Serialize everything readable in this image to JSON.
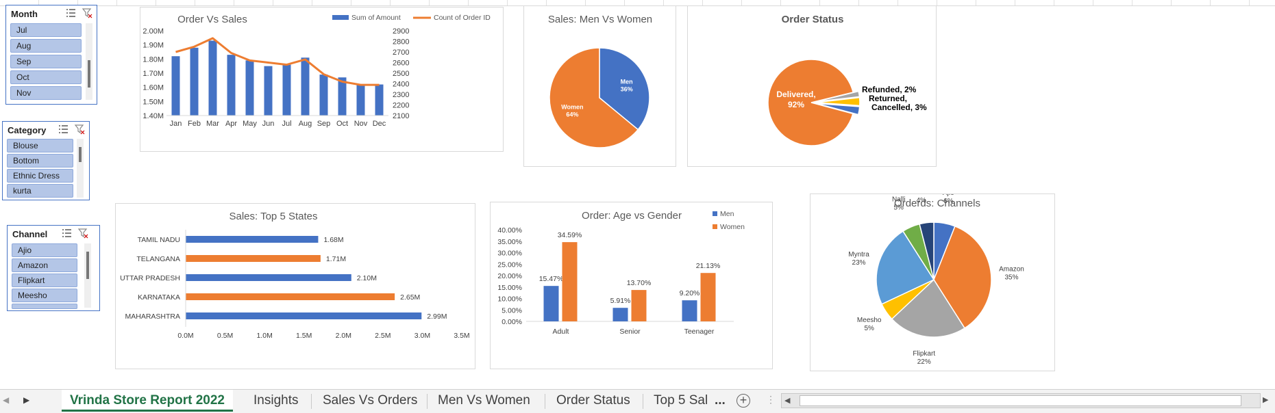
{
  "slicers": {
    "month": {
      "title": "Month",
      "items": [
        "Jul",
        "Aug",
        "Sep",
        "Oct",
        "Nov"
      ]
    },
    "category": {
      "title": "Category",
      "items": [
        "Blouse",
        "Bottom",
        "Ethnic Dress",
        "kurta"
      ]
    },
    "channel": {
      "title": "Channel",
      "items": [
        "Ajio",
        "Amazon",
        "Flipkart",
        "Meesho"
      ]
    }
  },
  "tabs": {
    "items": [
      "Vrinda Store Report 2022",
      "Insights",
      "Sales Vs Orders",
      "Men Vs Women",
      "Order Status",
      "Top 5 Sal"
    ],
    "more": "...",
    "add_icon": "plus-circle-icon"
  },
  "colors": {
    "blue": "#4472c4",
    "orange": "#ed7d31",
    "gray": "#a5a5a5",
    "yellow": "#ffc000",
    "lightblue": "#5b9bd5",
    "green": "#70ad47",
    "navy": "#264478",
    "tab_green": "#217346"
  },
  "chart_data": [
    {
      "id": "order_vs_sales",
      "type": "bar+line",
      "title": "Order Vs Sales",
      "categories": [
        "Jan",
        "Feb",
        "Mar",
        "Apr",
        "May",
        "Jun",
        "Jul",
        "Aug",
        "Sep",
        "Oct",
        "Nov",
        "Dec"
      ],
      "series": [
        {
          "name": "Sum of Amount",
          "type": "bar",
          "axis": "left",
          "values": [
            1.82,
            1.88,
            1.93,
            1.83,
            1.79,
            1.75,
            1.76,
            1.81,
            1.69,
            1.67,
            1.62,
            1.62
          ]
        },
        {
          "name": "Count of Order ID",
          "type": "line",
          "axis": "right",
          "values": [
            2700,
            2750,
            2830,
            2690,
            2620,
            2600,
            2580,
            2630,
            2490,
            2420,
            2390,
            2390
          ]
        }
      ],
      "left_ticks": [
        "2.00M",
        "1.90M",
        "1.80M",
        "1.70M",
        "1.60M",
        "1.50M",
        "1.40M"
      ],
      "right_ticks": [
        "2900",
        "2800",
        "2700",
        "2600",
        "2500",
        "2400",
        "2300",
        "2200",
        "2100"
      ],
      "ylim_left": [
        1.4,
        2.0
      ],
      "ylim_right": [
        2100,
        2900
      ],
      "legend": "top-right"
    },
    {
      "id": "men_vs_women",
      "type": "pie",
      "title": "Sales: Men Vs Women",
      "slices": [
        {
          "label": "Men",
          "value": 36,
          "pct": "36%",
          "color": "#4472c4"
        },
        {
          "label": "Women",
          "value": 64,
          "pct": "64%",
          "color": "#ed7d31"
        }
      ]
    },
    {
      "id": "order_status",
      "type": "pie",
      "title": "Order Status",
      "slices": [
        {
          "label": "Delivered,",
          "value": 92,
          "pct": "92%",
          "color": "#ed7d31"
        },
        {
          "label": "Refunded, 2%",
          "value": 2,
          "color": "#a5a5a5"
        },
        {
          "label": "Returned,",
          "value": 3,
          "color": "#ffc000"
        },
        {
          "label": "Cancelled, 3%",
          "value": 3,
          "color": "#4472c4"
        }
      ]
    },
    {
      "id": "top5_states",
      "type": "bar",
      "orientation": "horizontal",
      "title": "Sales: Top 5 States",
      "categories": [
        "TAMIL NADU",
        "TELANGANA",
        "UTTAR PRADESH",
        "KARNATAKA",
        "MAHARASHTRA"
      ],
      "values": [
        1.68,
        1.71,
        2.1,
        2.65,
        2.99
      ],
      "labels": [
        "1.68M",
        "1.71M",
        "2.10M",
        "2.65M",
        "2.99M"
      ],
      "colors": [
        "#4472c4",
        "#ed7d31",
        "#4472c4",
        "#ed7d31",
        "#4472c4"
      ],
      "xticks": [
        "0.0M",
        "0.5M",
        "1.0M",
        "1.5M",
        "2.0M",
        "2.5M",
        "3.0M",
        "3.5M"
      ],
      "xlim": [
        0,
        3.5
      ]
    },
    {
      "id": "age_vs_gender",
      "type": "bar",
      "title": "Order: Age vs Gender",
      "categories": [
        "Adult",
        "Senior",
        "Teenager"
      ],
      "series": [
        {
          "name": "Men",
          "values": [
            15.47,
            5.91,
            9.2
          ],
          "labels": [
            "15.47%",
            "5.91%",
            "9.20%"
          ],
          "color": "#4472c4"
        },
        {
          "name": "Women",
          "values": [
            34.59,
            13.7,
            21.13
          ],
          "labels": [
            "34.59%",
            "13.70%",
            "21.13%"
          ],
          "color": "#ed7d31"
        }
      ],
      "yticks": [
        "40.00%",
        "35.00%",
        "30.00%",
        "25.00%",
        "20.00%",
        "15.00%",
        "10.00%",
        "5.00%",
        "0.00%"
      ],
      "ylim": [
        0,
        40
      ],
      "legend": "top-right"
    },
    {
      "id": "channels",
      "type": "pie",
      "title": "Orderds: Channels",
      "slices": [
        {
          "label": "Ajio",
          "value": 6,
          "pct": "6%",
          "color": "#4472c4"
        },
        {
          "label": "Amazon",
          "value": 35,
          "pct": "35%",
          "color": "#ed7d31"
        },
        {
          "label": "Flipkart",
          "value": 22,
          "pct": "22%",
          "color": "#a5a5a5"
        },
        {
          "label": "Meesho",
          "value": 5,
          "pct": "5%",
          "color": "#ffc000"
        },
        {
          "label": "Myntra",
          "value": 23,
          "pct": "23%",
          "color": "#5b9bd5"
        },
        {
          "label": "Nalli",
          "value": 5,
          "pct": "5%",
          "color": "#70ad47"
        },
        {
          "label": "Others",
          "value": 4,
          "pct": "4%",
          "color": "#264478"
        }
      ]
    }
  ]
}
